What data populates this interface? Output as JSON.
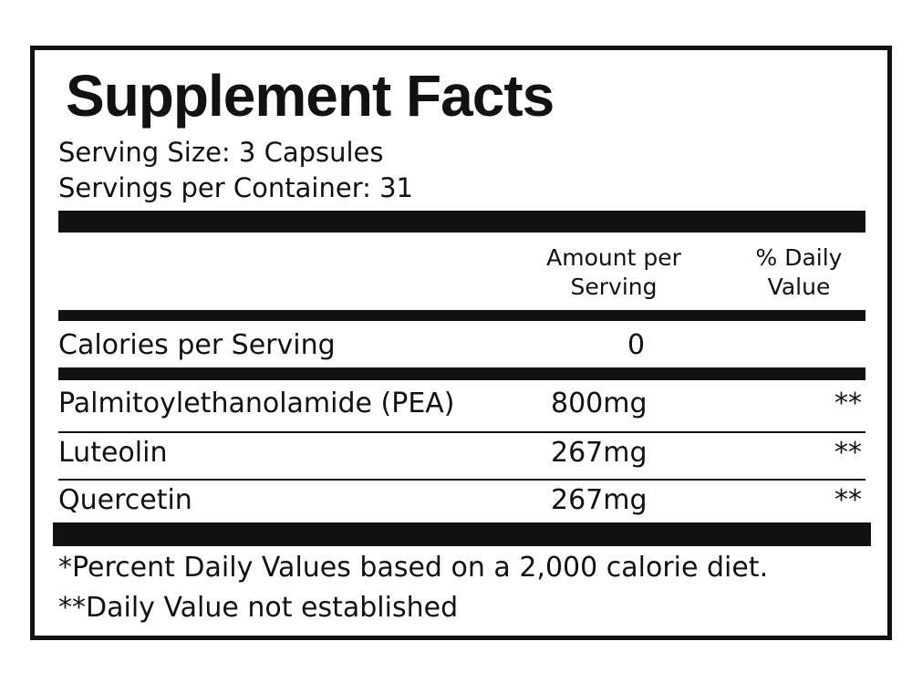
{
  "label": {
    "title": "Supplement Facts",
    "serving_size": "Serving Size: 3 Capsules",
    "servings_per_container": "Servings per Container: 31",
    "columns": {
      "amount_line1": "Amount per",
      "amount_line2": "Serving",
      "dv_line1": "% Daily",
      "dv_line2": "Value"
    },
    "calories": {
      "label": "Calories per Serving",
      "value": "0"
    },
    "ingredients": [
      {
        "name": "Palmitoylethanolamide (PEA)",
        "amount": "800mg",
        "dv": "**"
      },
      {
        "name": "Luteolin",
        "amount": "267mg",
        "dv": "**"
      },
      {
        "name": "Quercetin",
        "amount": "267mg",
        "dv": "**"
      }
    ],
    "footnotes": [
      "*Percent Daily Values based on a 2,000 calorie diet.",
      "**Daily Value not established"
    ]
  }
}
